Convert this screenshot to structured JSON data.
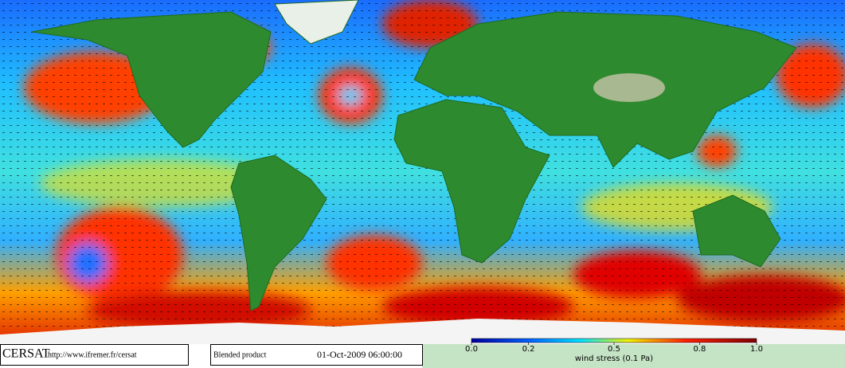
{
  "map": {
    "colorbar": {
      "label": "wind stress (0.1 Pa)",
      "lim": [
        0,
        1
      ],
      "ticks": [
        {
          "value": 0,
          "label": "0.0"
        },
        0.2,
        0.5,
        0.8,
        {
          "value": 1,
          "label": "1.0"
        }
      ]
    }
  },
  "footer": {
    "logo": "CERSAT",
    "url": "http://www.ifremer.fr/cersat",
    "product": "Blended product",
    "date": "01-Oct-2009 06:00:00"
  }
}
